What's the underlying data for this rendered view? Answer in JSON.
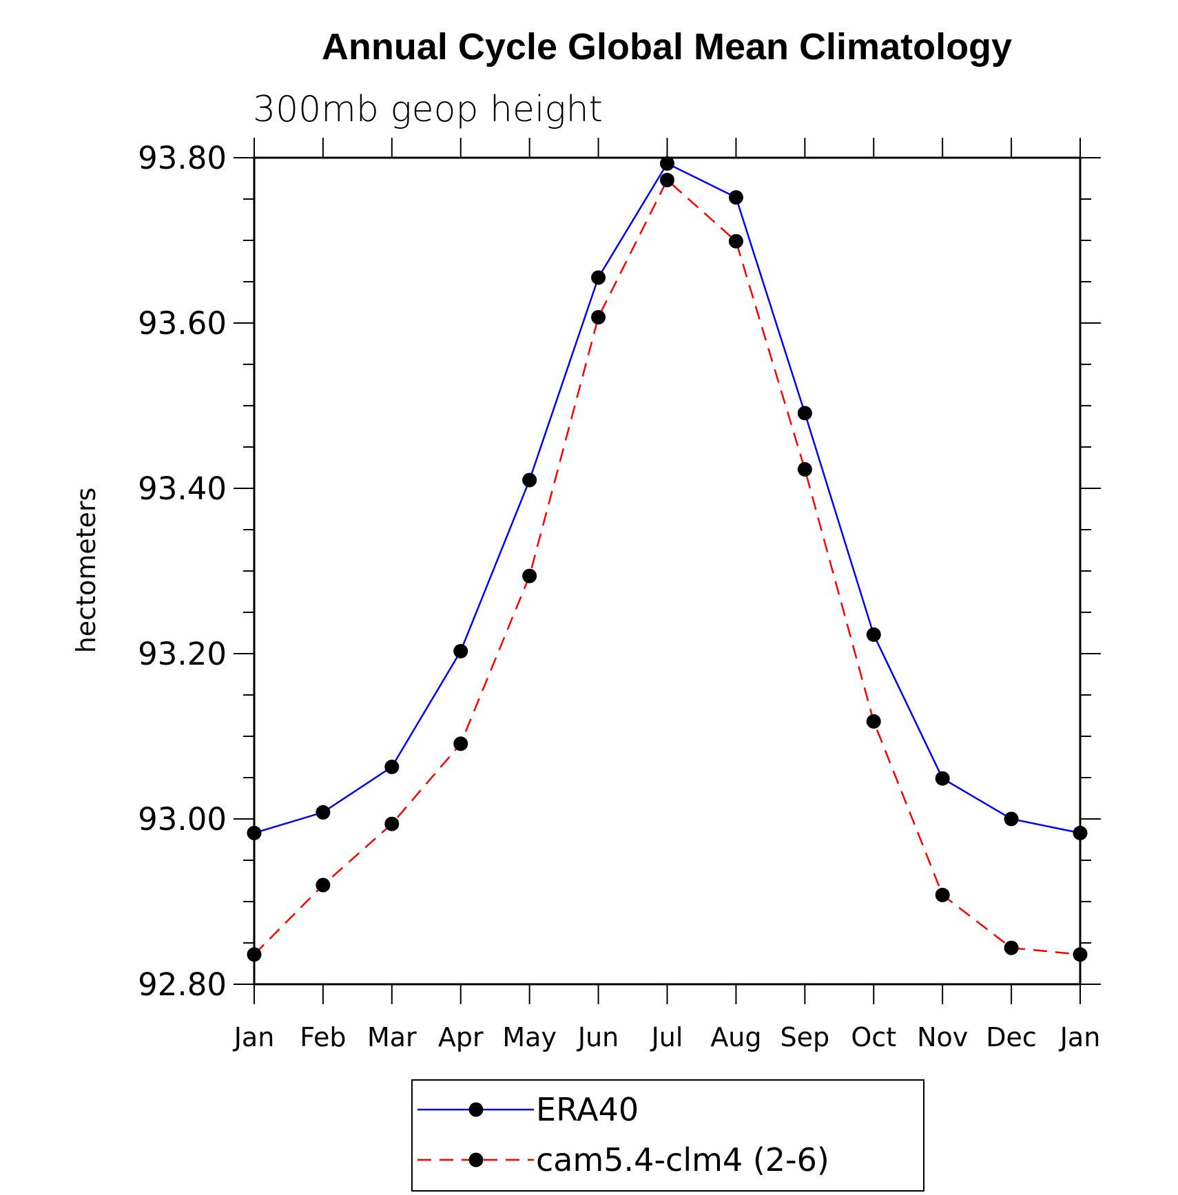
{
  "chart_data": {
    "type": "line",
    "title": "Annual Cycle Global Mean Climatology",
    "subtitle": "300mb geop height",
    "ylabel": "hectometers",
    "xlabel": "",
    "categories": [
      "Jan",
      "Feb",
      "Mar",
      "Apr",
      "May",
      "Jun",
      "Jul",
      "Aug",
      "Sep",
      "Oct",
      "Nov",
      "Dec",
      "Jan"
    ],
    "ylim": [
      92.8,
      93.8
    ],
    "yticks": [
      "92.80",
      "93.00",
      "93.20",
      "93.40",
      "93.60",
      "93.80"
    ],
    "legend_position": "bottom",
    "grid": false,
    "series": [
      {
        "name": "ERA40",
        "color": "#0000ff",
        "style": "solid",
        "values": [
          92.983,
          93.008,
          93.063,
          93.203,
          93.41,
          93.655,
          93.793,
          93.752,
          93.491,
          93.223,
          93.049,
          93.0,
          92.983
        ]
      },
      {
        "name": "cam5.4-clm4 (2-6)",
        "color": "#ff0000",
        "style": "dashed",
        "values": [
          92.836,
          92.92,
          92.994,
          93.091,
          93.294,
          93.607,
          93.773,
          93.699,
          93.423,
          93.118,
          92.908,
          92.844,
          92.836
        ]
      }
    ]
  }
}
